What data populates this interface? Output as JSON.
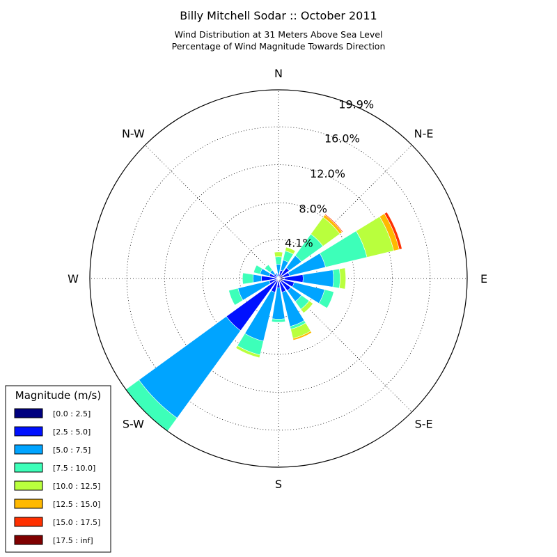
{
  "chart_data": {
    "type": "windrose",
    "title": "Billy Mitchell Sodar :: October 2011",
    "subtitle_lines": [
      "Wind Distribution at 31 Meters Above Sea Level",
      "Percentage of Wind Magnitude Towards Direction"
    ],
    "directions": [
      {
        "label": "N",
        "angle": 0
      },
      {
        "label": "N-E",
        "angle": 45
      },
      {
        "label": "E",
        "angle": 90
      },
      {
        "label": "S-E",
        "angle": 135
      },
      {
        "label": "S",
        "angle": 180
      },
      {
        "label": "S-W",
        "angle": 225
      },
      {
        "label": "W",
        "angle": 270
      },
      {
        "label": "N-W",
        "angle": 315
      }
    ],
    "rings": [
      {
        "value": 4.1,
        "label": "4.1%"
      },
      {
        "value": 8.0,
        "label": "8.0%"
      },
      {
        "value": 12.0,
        "label": "12.0%"
      },
      {
        "value": 16.0,
        "label": "16.0%"
      },
      {
        "value": 19.9,
        "label": "19.9%"
      }
    ],
    "rmax": 19.9,
    "legend": {
      "title": "Magnitude (m/s)",
      "placement": "lower-left",
      "bins": [
        {
          "label": "[0.0 : 2.5]",
          "color": "#00007f"
        },
        {
          "label": "[2.5 : 5.0]",
          "color": "#0010ff"
        },
        {
          "label": "[5.0 : 7.5]",
          "color": "#00a4ff"
        },
        {
          "label": "[7.5 : 10.0]",
          "color": "#3dffb9"
        },
        {
          "label": "[10.0 : 12.5]",
          "color": "#b9ff3d"
        },
        {
          "label": "[12.5 : 15.0]",
          "color": "#ffb900"
        },
        {
          "label": "[15.0 : 17.5]",
          "color": "#ff3000"
        },
        {
          "label": "[17.5 : inf]",
          "color": "#7f0000"
        }
      ]
    },
    "sector_width_deg": 18,
    "sectors": [
      {
        "direction_deg": 0,
        "cumulative_pct": [
          0.2,
          0.5,
          1.5,
          2.3,
          2.8
        ]
      },
      {
        "direction_deg": 22.5,
        "cumulative_pct": [
          0.3,
          0.9,
          2.0,
          3.0,
          3.4
        ]
      },
      {
        "direction_deg": 45,
        "cumulative_pct": [
          0.5,
          1.4,
          3.0,
          5.8,
          8.0,
          8.3,
          8.4
        ]
      },
      {
        "direction_deg": 67.5,
        "cumulative_pct": [
          0.5,
          1.2,
          5.1,
          9.6,
          12.5,
          13.1,
          13.4
        ]
      },
      {
        "direction_deg": 90,
        "cumulative_pct": [
          0.6,
          2.6,
          5.8,
          6.5,
          7.1
        ]
      },
      {
        "direction_deg": 112.5,
        "cumulative_pct": [
          0.5,
          1.7,
          5.0,
          6.0
        ]
      },
      {
        "direction_deg": 135,
        "cumulative_pct": [
          0.4,
          1.6,
          3.0,
          4.0,
          4.5
        ]
      },
      {
        "direction_deg": 157.5,
        "cumulative_pct": [
          0.4,
          1.5,
          5.2,
          5.5,
          6.5,
          6.7
        ]
      },
      {
        "direction_deg": 180,
        "cumulative_pct": [
          0.3,
          1.0,
          4.3,
          4.6
        ]
      },
      {
        "direction_deg": 202.5,
        "cumulative_pct": [
          0.3,
          1.5,
          6.8,
          8.3,
          8.6
        ]
      },
      {
        "direction_deg": 225,
        "cumulative_pct": [
          0.3,
          6.8,
          18.2,
          19.9
        ]
      },
      {
        "direction_deg": 247.5,
        "cumulative_pct": [
          0.2,
          1.0,
          4.4,
          5.4
        ]
      },
      {
        "direction_deg": 270,
        "cumulative_pct": [
          0.3,
          1.8,
          2.7,
          3.8
        ]
      },
      {
        "direction_deg": 292.5,
        "cumulative_pct": [
          0.2,
          1.0,
          2.0,
          2.7
        ]
      },
      {
        "direction_deg": 315,
        "cumulative_pct": [
          0.2,
          0.6,
          1.1,
          1.8
        ]
      },
      {
        "direction_deg": 337.5,
        "cumulative_pct": [
          0.1,
          0.2,
          0.6
        ]
      }
    ]
  }
}
